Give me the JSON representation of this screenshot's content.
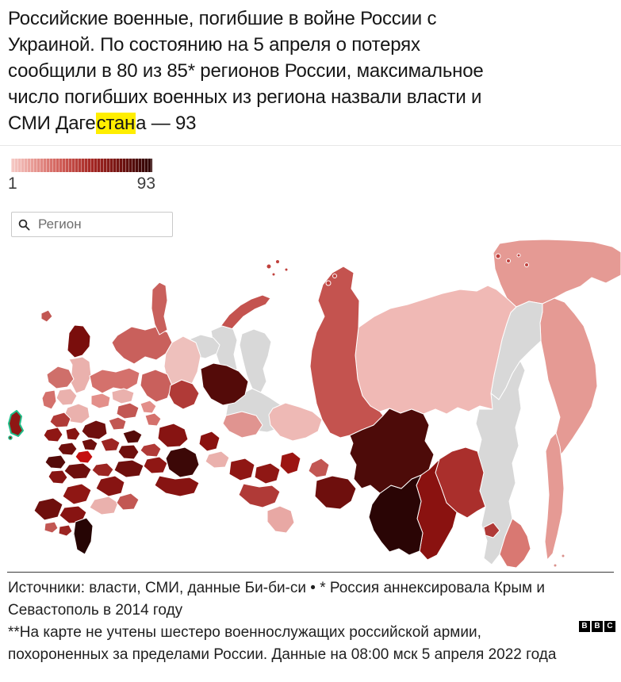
{
  "header": {
    "lines": [
      "Российские военные, погибшие в войне России с",
      "Украиной. По состоянию на 5 апреля о потерях",
      "сообщили в 80 из 85* регионов России, максимальное",
      "число погибших военных из региона назвали власти и"
    ],
    "last_line_prefix": "СМИ Даге",
    "last_line_highlight": "стан",
    "last_line_suffix": "а — 93",
    "highlight_color": "#ffee00"
  },
  "legend": {
    "min": "1",
    "max": "93",
    "gradient": [
      "#f6cbc7",
      "#e89a94",
      "#cf5a54",
      "#a32622",
      "#701210",
      "#2e0605"
    ]
  },
  "search": {
    "placeholder": "Регион"
  },
  "chart_data": {
    "type": "heatmap",
    "title": "Choropleth map of Russia: reported Russian military deaths in the war with Ukraine, by region",
    "value_range": [
      1,
      93
    ],
    "max_region": "Дагестан",
    "max_value": 93,
    "regions_reporting": 80,
    "regions_total": 85,
    "legend_min_label": "1",
    "legend_max_label": "93",
    "no_data_color": "#d8d8d8",
    "border_color": "#ffffff",
    "annexed_outline_color": "#1fbd87"
  },
  "map": {
    "regions": [
      {
        "name": "chukotka",
        "fill": "#e59a94"
      },
      {
        "name": "kamchatka",
        "fill": "#e59a94"
      },
      {
        "name": "magadan",
        "fill": "#d8d8d8"
      },
      {
        "name": "yakutia",
        "fill": "#f0b9b5"
      },
      {
        "name": "khabarovsk",
        "fill": "#d8d8d8"
      },
      {
        "name": "primorye",
        "fill": "#d97872"
      },
      {
        "name": "jewish-ao",
        "fill": "#b03a37"
      },
      {
        "name": "amur",
        "fill": "#aa2f2c"
      },
      {
        "name": "zabaykalsky",
        "fill": "#8a1210"
      },
      {
        "name": "buryatia",
        "fill": "#2a0505"
      },
      {
        "name": "irkutsk",
        "fill": "#4d0b09"
      },
      {
        "name": "krasnoyarsk",
        "fill": "#c4534f"
      },
      {
        "name": "novaya-zemlya",
        "fill": "#c4534f"
      },
      {
        "name": "yamal-west",
        "fill": "#d8d8d8"
      },
      {
        "name": "yamal-east",
        "fill": "#d8d8d8"
      },
      {
        "name": "khanty",
        "fill": "#d8d8d8"
      },
      {
        "name": "nenets",
        "fill": "#d8d8d8"
      },
      {
        "name": "tomsk",
        "fill": "#eeb9b5"
      },
      {
        "name": "arkhangelsk",
        "fill": "#c9605c"
      },
      {
        "name": "arkhangelsk-north",
        "fill": "#c9605c"
      },
      {
        "name": "komi",
        "fill": "#eec0bc"
      },
      {
        "name": "sverdlovsk",
        "fill": "#540b09"
      },
      {
        "name": "murmansk",
        "fill": "#7a0e0c"
      },
      {
        "name": "karelia",
        "fill": "#eab1ad"
      },
      {
        "name": "vologda",
        "fill": "#d4716c"
      },
      {
        "name": "kirov",
        "fill": "#c9605c"
      },
      {
        "name": "perm",
        "fill": "#b03a37"
      },
      {
        "name": "leningrad",
        "fill": "#cf6f6a"
      },
      {
        "name": "novgorod",
        "fill": "#eab1ad"
      },
      {
        "name": "pskov",
        "fill": "#d4716c"
      },
      {
        "name": "tver",
        "fill": "#eab1ad"
      },
      {
        "name": "yaroslavl",
        "fill": "#e38f8a"
      },
      {
        "name": "kostroma",
        "fill": "#eab1ad"
      },
      {
        "name": "nizhny-novgorod",
        "fill": "#c25753"
      },
      {
        "name": "mari-el",
        "fill": "#e38f8a"
      },
      {
        "name": "moscow",
        "fill": "#6e0f0d"
      },
      {
        "name": "vladimir",
        "fill": "#c25753"
      },
      {
        "name": "smolensk",
        "fill": "#b03a37"
      },
      {
        "name": "bryansk",
        "fill": "#8f1714"
      },
      {
        "name": "kaluga",
        "fill": "#871412"
      },
      {
        "name": "tula",
        "fill": "#6e0f0d"
      },
      {
        "name": "ryazan",
        "fill": "#9c2522"
      },
      {
        "name": "mordovia",
        "fill": "#540b09"
      },
      {
        "name": "chuvashia",
        "fill": "#d4716c"
      },
      {
        "name": "tatarstan",
        "fill": "#871412"
      },
      {
        "name": "ulyanovsk",
        "fill": "#b03a37"
      },
      {
        "name": "penza",
        "fill": "#6e0f0d"
      },
      {
        "name": "orel",
        "fill": "#6e0f0d"
      },
      {
        "name": "kursk",
        "fill": "#540b09"
      },
      {
        "name": "lipetsk",
        "fill": "#c40f0f"
      },
      {
        "name": "voronezh",
        "fill": "#6e0f0d"
      },
      {
        "name": "tambov",
        "fill": "#9c2522"
      },
      {
        "name": "belgorod",
        "fill": "#871412"
      },
      {
        "name": "saratov",
        "fill": "#6e0f0d"
      },
      {
        "name": "samara",
        "fill": "#8f1714"
      },
      {
        "name": "bashkortostan",
        "fill": "#3c0807"
      },
      {
        "name": "orenburg",
        "fill": "#871412"
      },
      {
        "name": "chelyabinsk",
        "fill": "#8a1210"
      },
      {
        "name": "kurgan",
        "fill": "#eab1ad"
      },
      {
        "name": "tyumen",
        "fill": "#e09490"
      },
      {
        "name": "omsk",
        "fill": "#8f1714"
      },
      {
        "name": "novosibirsk",
        "fill": "#8f1714"
      },
      {
        "name": "kemerovo",
        "fill": "#9c1512"
      },
      {
        "name": "altai-krai",
        "fill": "#b03a37"
      },
      {
        "name": "altai-republic",
        "fill": "#e8a8a4"
      },
      {
        "name": "khakassia",
        "fill": "#c25753"
      },
      {
        "name": "tyva",
        "fill": "#6e0f0d"
      },
      {
        "name": "volgograd",
        "fill": "#871412"
      },
      {
        "name": "rostov",
        "fill": "#8f1714"
      },
      {
        "name": "kalmykia",
        "fill": "#eab1ad"
      },
      {
        "name": "astrakhan",
        "fill": "#c25753"
      },
      {
        "name": "krasnodar",
        "fill": "#6e0f0d"
      },
      {
        "name": "stavropol",
        "fill": "#871412"
      },
      {
        "name": "kabardino-balkaria",
        "fill": "#c25753"
      },
      {
        "name": "north-ossetia",
        "fill": "#9c2522"
      },
      {
        "name": "chechnya",
        "fill": "#c40f0f"
      },
      {
        "name": "dagestan",
        "fill": "#260504"
      },
      {
        "name": "kaliningrad",
        "fill": "#c25753"
      },
      {
        "name": "sakhalin",
        "fill": "#e59a94"
      },
      {
        "name": "crimea",
        "fill": "#8f1714",
        "stroke": "#1fbd87",
        "stroke_width": 2
      },
      {
        "name": "sevastopol",
        "fill": "#8f1714",
        "stroke": "#1fbd87",
        "stroke_width": 1.5
      },
      {
        "name": "arctic-islands",
        "fill": "#c0403c"
      },
      {
        "name": "kuril-islands",
        "fill": "#d9918c"
      }
    ]
  },
  "footer": {
    "sources_text": "Источники: власти, СМИ, данные Би-би-си • * Россия аннексировала Крым и Севастополь в 2014 году",
    "footnote_text": "**На карте не учтены шестеро военнослужащих российской армии, похороненных за пределами России. Данные на 08:00 мск 5 апреля 2022 года",
    "bbc_letters": [
      "B",
      "B",
      "C"
    ]
  }
}
